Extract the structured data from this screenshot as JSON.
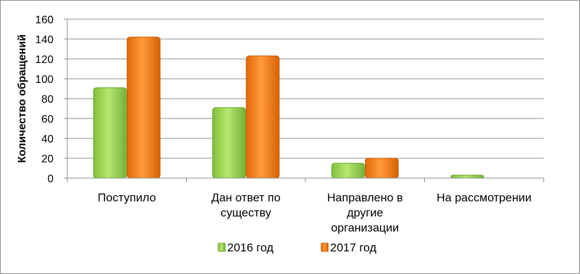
{
  "chart_data": {
    "type": "bar",
    "categories": [
      [
        "Поступило"
      ],
      [
        "Дан ответ по",
        "существу"
      ],
      [
        "Направлено в",
        "другие",
        "организации"
      ],
      [
        "На рассмотрении"
      ]
    ],
    "series": [
      {
        "name": "2016 год",
        "values": [
          91,
          71,
          15,
          3
        ],
        "color": "#92d050"
      },
      {
        "name": "2017 год",
        "values": [
          142,
          123,
          20,
          0
        ],
        "color": "#f47a0c"
      }
    ],
    "ylabel": "Количество  обращений",
    "ylim": [
      0,
      160
    ],
    "yticks": [
      0,
      20,
      40,
      60,
      80,
      100,
      120,
      140,
      160
    ],
    "grid": true,
    "legend": "bottom"
  }
}
